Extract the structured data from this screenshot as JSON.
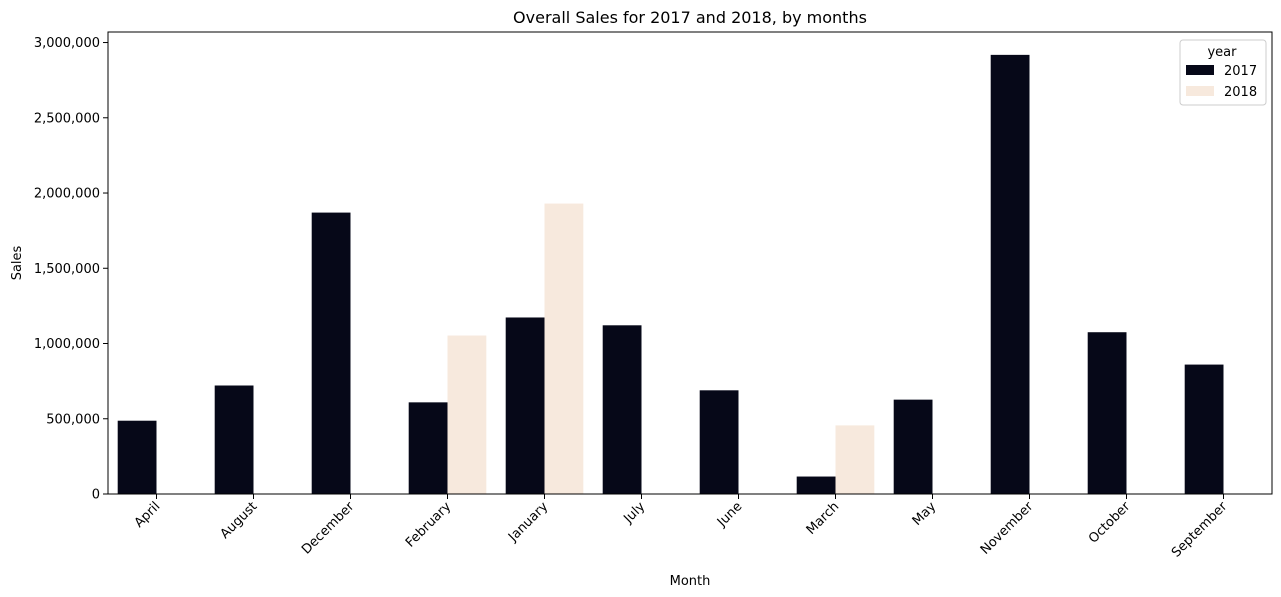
{
  "chart_data": {
    "type": "bar",
    "title": "Overall Sales for 2017 and 2018, by months",
    "xlabel": "Month",
    "ylabel": "Sales",
    "ylim": [
      0,
      3070000
    ],
    "yticks": [
      0,
      500000,
      1000000,
      1500000,
      2000000,
      2500000,
      3000000
    ],
    "ytick_labels": [
      "0",
      "500,000",
      "1,000,000",
      "1,500,000",
      "2,000,000",
      "2,500,000",
      "3,000,000"
    ],
    "categories": [
      "April",
      "August",
      "December",
      "February",
      "January",
      "July",
      "June",
      "March",
      "May",
      "November",
      "October",
      "September"
    ],
    "series": [
      {
        "name": "2017",
        "color": "#060818",
        "values": [
          487000,
          721000,
          1870000,
          609000,
          1173000,
          1121000,
          689000,
          116000,
          627000,
          2918000,
          1075000,
          860000
        ]
      },
      {
        "name": "2018",
        "color": "#f7e9dd",
        "values": [
          null,
          null,
          null,
          1053000,
          1930000,
          null,
          null,
          456000,
          null,
          null,
          null,
          null
        ]
      }
    ],
    "legend": {
      "title": "year",
      "position": "top-right"
    },
    "grid": false
  }
}
